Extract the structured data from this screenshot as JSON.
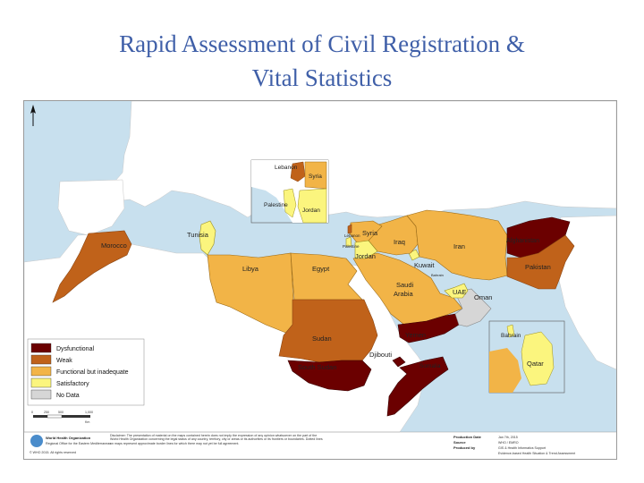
{
  "title_line1": "Rapid Assessment of Civil Registration &",
  "title_line2": "Vital Statistics",
  "colors": {
    "dysfunctional": "#6b0000",
    "weak": "#c0621a",
    "functional": "#f2b447",
    "satisfactory": "#fbf57e",
    "no_data": "#d6d6d6",
    "other_land": "#ffffff",
    "sea": "#c8e0ee"
  },
  "legend": [
    {
      "label": "Dysfunctional",
      "color": "#6b0000"
    },
    {
      "label": "Weak",
      "color": "#c0621a"
    },
    {
      "label": "Functional but inadequate",
      "color": "#f2b447"
    },
    {
      "label": "Satisfactory",
      "color": "#fbf57e"
    },
    {
      "label": "No Data",
      "color": "#d6d6d6"
    }
  ],
  "countries": [
    {
      "name": "Morocco",
      "status": "weak"
    },
    {
      "name": "Tunisia",
      "status": "satisfactory"
    },
    {
      "name": "Libya",
      "status": "functional"
    },
    {
      "name": "Egypt",
      "status": "functional"
    },
    {
      "name": "Sudan",
      "status": "weak"
    },
    {
      "name": "South Sudan",
      "status": "dysfunctional"
    },
    {
      "name": "Djibouti",
      "status": "dysfunctional"
    },
    {
      "name": "Somalia",
      "status": "dysfunctional"
    },
    {
      "name": "Yemen",
      "status": "dysfunctional"
    },
    {
      "name": "Oman",
      "status": "no_data"
    },
    {
      "name": "UAE",
      "status": "satisfactory"
    },
    {
      "name": "Saudi Arabia",
      "status": "functional"
    },
    {
      "name": "Kuwait",
      "status": "satisfactory"
    },
    {
      "name": "Bahrain",
      "status": "satisfactory"
    },
    {
      "name": "Qatar",
      "status": "satisfactory"
    },
    {
      "name": "Iraq",
      "status": "functional"
    },
    {
      "name": "Iran",
      "status": "functional"
    },
    {
      "name": "Afghanistan",
      "status": "dysfunctional"
    },
    {
      "name": "Pakistan",
      "status": "weak"
    },
    {
      "name": "Syria",
      "status": "functional"
    },
    {
      "name": "Jordan",
      "status": "satisfactory"
    },
    {
      "name": "Lebanon",
      "status": "weak"
    },
    {
      "name": "Palestine",
      "status": "satisfactory"
    }
  ],
  "inset_labels": {
    "levant": [
      "Lebanon",
      "Syria",
      "Palestine",
      "Jordan"
    ],
    "gulf": [
      "Bahrain",
      "Qatar"
    ],
    "small": [
      "Lebanon",
      "Palestine",
      "Bahrain"
    ]
  },
  "scale": {
    "ticks": [
      "0",
      "250",
      "500",
      "1,000"
    ],
    "unit": "Km"
  },
  "footer": {
    "who_name": "World Health Organization",
    "who_region": "Regional Office for the Eastern Mediterranean",
    "copyright": "© WHO 2015. All rights reserved",
    "disclaimer": "Disclaimer: The presentation of material on the maps contained herein does not imply the expression of any opinion whatsoever on the part of the World Health Organization concerning the legal status of any country, territory, city or areas or its authorities or its frontiers or boundaries. Dotted lines on maps represent approximate border lines for which there may not yet be full agreement.",
    "production_date_label": "Production Date",
    "production_date": "Jan 7th, 2015",
    "source_label": "Source",
    "source": "WHO / EMRO",
    "produced_by_label": "Produced by",
    "produced_by_1": "GIS & Health Informatics Support",
    "produced_by_2": "Evidence-based Health Situation & Trend Assessment"
  }
}
